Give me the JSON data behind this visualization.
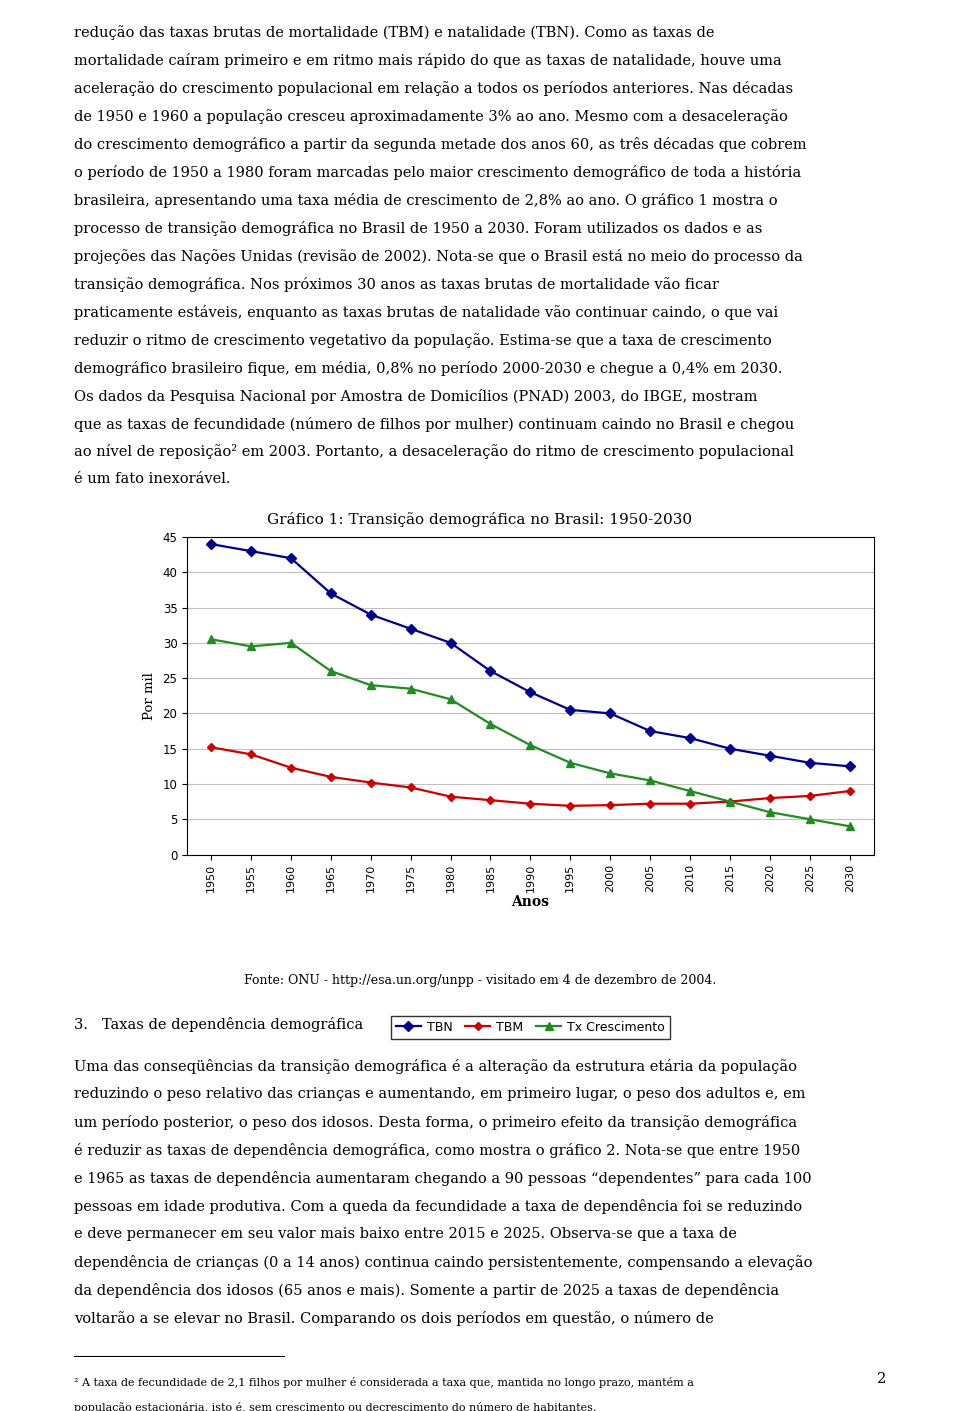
{
  "title": "Gráfico 1: Transição demográfica no Brasil: 1950-2030",
  "xlabel": "Anos",
  "ylabel": "Por mil",
  "years": [
    1950,
    1955,
    1960,
    1965,
    1970,
    1975,
    1980,
    1985,
    1990,
    1995,
    2000,
    2005,
    2010,
    2015,
    2020,
    2025,
    2030
  ],
  "TBN": [
    44,
    43,
    42,
    37,
    34,
    32,
    30,
    26,
    23,
    20.5,
    20,
    17.5,
    16.5,
    15,
    14,
    13,
    12.5
  ],
  "TBM": [
    15.2,
    14.2,
    12.3,
    11.0,
    10.2,
    9.5,
    8.2,
    7.7,
    7.2,
    6.9,
    7.0,
    7.2,
    7.2,
    7.5,
    8.0,
    8.3,
    9.0
  ],
  "TxCrescimento": [
    30.5,
    29.5,
    30.0,
    26.0,
    24.0,
    23.5,
    22.0,
    18.5,
    15.5,
    13.0,
    11.5,
    10.5,
    9.0,
    7.5,
    6.0,
    5.0,
    4.0
  ],
  "TBN_color": "#00008B",
  "TBM_color": "#CC0000",
  "TxC_color": "#228B22",
  "ylim": [
    0,
    45
  ],
  "yticks": [
    0,
    5,
    10,
    15,
    20,
    25,
    30,
    35,
    40,
    45
  ],
  "bg_color": "#FFFFFF",
  "plot_bg_color": "#FFFFFF",
  "grid_color": "#C0C0C0",
  "legend_labels": [
    "TBN",
    "TBM",
    "Tx Crescimento"
  ],
  "fonte_text": "Fonte: ONU - http://esa.un.org/unpp - visitado em 4 de dezembro de 2004.",
  "top_text": [
    "redução das taxas brutas de mortalidade (TBM) e natalidade (TBN). Como as taxas de mortalidade caíram primeiro e em ritmo mais rápido do que as taxas de natalidade, houve uma aceleração do crescimento populacional em relação a todos os períodos anteriores. Nas décadas de 1950 e 1960 a população cresceu aproximadamente 3% ao ano. Mesmo com a desaceleração do crescimento demográfico a partir da segunda metade dos anos 60, as três décadas que cobrem o período de 1950 a 1980 foram marcadas pelo maior crescimento demográfico de toda a história brasileira, apresentando uma taxa média de crescimento de 2,8% ao ano. O gráfico 1 mostra o processo de transição demográfica no Brasil de 1950 a 2030. Foram utilizados os dados e as projeções das Nações Unidas (revisão de 2002). Nota-se que o Brasil está no meio do processo da transição demográfica. Nos próximos 30 anos as taxas brutas de mortalidade vão ficar praticamente estáveis, enquanto as taxas brutas de natalidade vão continuar caindo, o que vai reduzir o ritmo de crescimento vegetativo da população. Estima-se que a taxa de crescimento demográfico brasileiro fique, em média, 0,8% no período 2000-2030 e chegue a 0,4% em 2030. Os dados da Pesquisa Nacional por Amostra de Domicílios (PNAD) 2003, do IBGE, mostram que as taxas de fecundidade (número de filhos por mulher) continuam caindo no Brasil e chegou ao nível de reposição² em 2003. Portanto, a desaceleração do ritmo de crescimento populacional é um fato inexorável."
  ],
  "section_heading": "3.   Taxas de dependência demográfica",
  "bottom_text": "Uma das conseqüências da transição demográfica é a alteração da estrutura etária da população reduzindo o peso relativo das crianças e aumentando, em primeiro lugar, o peso dos adultos e, em um período posterior, o peso dos idosos. Desta forma, o primeiro efeito da transição demográfica é reduzir as taxas de dependência demográfica, como mostra o gráfico 2. Nota-se que entre 1950 e 1965 as taxas de dependência aumentaram chegando a 90 pessoas \"dependentes\" para cada 100 pessoas em idade produtiva. Com a queda da fecundidade a taxa de dependência foi se reduzindo e deve permanecer em seu valor mais baixo entre 2015 e 2025. Observa-se que a taxa de dependência de crianças (0 a 14 anos) continua caindo persistentemente, compensando a elevação da dependência dos idosos (65 anos e mais). Somente a partir de 2025 a taxas de dependência voltarão a se elevar no Brasil. Comparando os dois períodos em questão, o número de",
  "footnote_text": "A taxa de fecundidade de 2,1 filhos por mulher é considerada a taxa que, mantida no longo prazo, mantém a população estacionária, isto é, sem crescimento ou decrescimento do número de habitantes.",
  "page_number": "2",
  "text_font_size": 10.5,
  "heading_font_size": 10.5
}
